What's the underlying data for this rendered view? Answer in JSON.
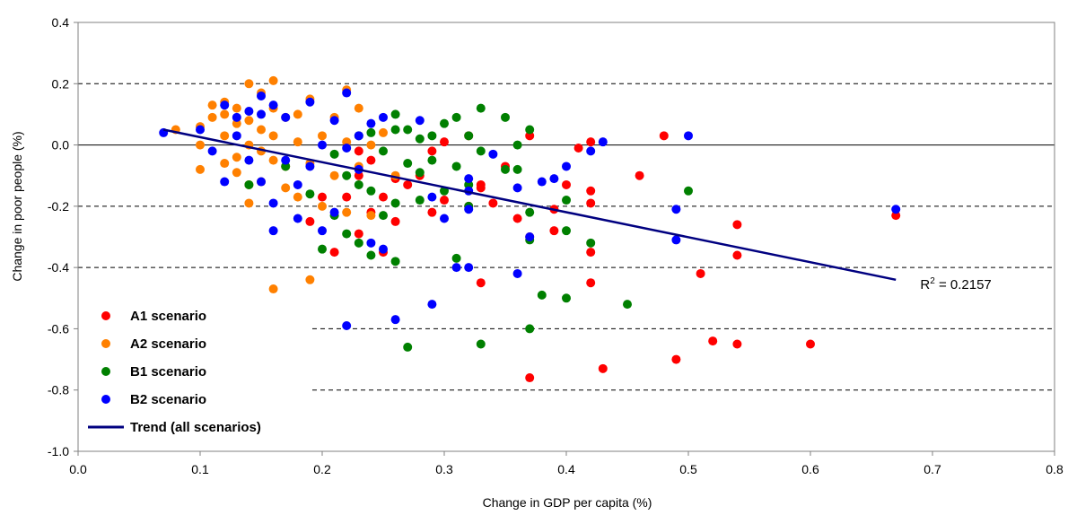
{
  "chart_data": {
    "type": "scatter",
    "title": "",
    "xlabel": "Change in GDP per capita (%)",
    "ylabel": "Change in poor people (%)",
    "xlim": [
      0.0,
      0.8
    ],
    "ylim": [
      -1.0,
      0.4
    ],
    "x_ticks": [
      "0.0",
      "0.1",
      "0.2",
      "0.3",
      "0.4",
      "0.5",
      "0.6",
      "0.7",
      "0.8"
    ],
    "y_ticks": [
      "0.4",
      "0.2",
      "0.0",
      "-0.2",
      "-0.4",
      "-0.6",
      "-0.8",
      "-1.0"
    ],
    "grid": "horizontal dashed",
    "legend_position": "bottom-left",
    "series": [
      {
        "name": "A1 scenario",
        "color": "#ff0000",
        "points": [
          [
            0.67,
            -0.23
          ],
          [
            0.6,
            -0.65
          ],
          [
            0.54,
            -0.26
          ],
          [
            0.54,
            -0.36
          ],
          [
            0.54,
            -0.65
          ],
          [
            0.52,
            -0.64
          ],
          [
            0.51,
            -0.42
          ],
          [
            0.49,
            -0.7
          ],
          [
            0.48,
            0.03
          ],
          [
            0.46,
            -0.1
          ],
          [
            0.42,
            -0.15
          ],
          [
            0.42,
            -0.19
          ],
          [
            0.42,
            -0.35
          ],
          [
            0.42,
            -0.45
          ],
          [
            0.42,
            0.01
          ],
          [
            0.41,
            -0.01
          ],
          [
            0.4,
            -0.13
          ],
          [
            0.39,
            -0.21
          ],
          [
            0.39,
            -0.28
          ],
          [
            0.43,
            -0.73
          ],
          [
            0.37,
            -0.76
          ],
          [
            0.37,
            -0.3
          ],
          [
            0.36,
            -0.24
          ],
          [
            0.35,
            -0.07
          ],
          [
            0.34,
            -0.19
          ],
          [
            0.33,
            -0.45
          ],
          [
            0.33,
            -0.13
          ],
          [
            0.32,
            -0.2
          ],
          [
            0.32,
            0.03
          ],
          [
            0.3,
            -0.18
          ],
          [
            0.29,
            -0.22
          ],
          [
            0.28,
            -0.1
          ],
          [
            0.27,
            -0.13
          ],
          [
            0.26,
            -0.25
          ],
          [
            0.25,
            -0.17
          ],
          [
            0.25,
            -0.35
          ],
          [
            0.24,
            -0.22
          ],
          [
            0.24,
            -0.05
          ],
          [
            0.23,
            -0.1
          ],
          [
            0.23,
            -0.29
          ],
          [
            0.22,
            -0.17
          ],
          [
            0.21,
            -0.35
          ],
          [
            0.2,
            -0.17
          ],
          [
            0.19,
            -0.25
          ],
          [
            0.37,
            0.03
          ],
          [
            0.3,
            0.01
          ],
          [
            0.26,
            -0.11
          ],
          [
            0.23,
            -0.02
          ],
          [
            0.33,
            -0.14
          ],
          [
            0.29,
            -0.02
          ]
        ]
      },
      {
        "name": "A2 scenario",
        "color": "#ff8000",
        "points": [
          [
            0.08,
            0.05
          ],
          [
            0.1,
            0.06
          ],
          [
            0.1,
            0.0
          ],
          [
            0.1,
            -0.08
          ],
          [
            0.11,
            0.13
          ],
          [
            0.11,
            0.09
          ],
          [
            0.12,
            0.14
          ],
          [
            0.12,
            0.03
          ],
          [
            0.12,
            -0.06
          ],
          [
            0.13,
            0.07
          ],
          [
            0.13,
            0.12
          ],
          [
            0.13,
            -0.04
          ],
          [
            0.13,
            -0.09
          ],
          [
            0.14,
            0.08
          ],
          [
            0.14,
            0.2
          ],
          [
            0.14,
            0.0
          ],
          [
            0.14,
            -0.19
          ],
          [
            0.15,
            0.17
          ],
          [
            0.15,
            0.05
          ],
          [
            0.15,
            -0.02
          ],
          [
            0.15,
            -0.12
          ],
          [
            0.16,
            0.12
          ],
          [
            0.16,
            0.03
          ],
          [
            0.16,
            -0.05
          ],
          [
            0.16,
            0.21
          ],
          [
            0.16,
            -0.47
          ],
          [
            0.17,
            0.09
          ],
          [
            0.17,
            -0.14
          ],
          [
            0.17,
            -0.07
          ],
          [
            0.18,
            0.01
          ],
          [
            0.18,
            -0.17
          ],
          [
            0.19,
            0.15
          ],
          [
            0.19,
            -0.06
          ],
          [
            0.19,
            -0.44
          ],
          [
            0.2,
            0.03
          ],
          [
            0.2,
            -0.2
          ],
          [
            0.21,
            0.09
          ],
          [
            0.21,
            -0.1
          ],
          [
            0.22,
            0.18
          ],
          [
            0.22,
            -0.22
          ],
          [
            0.23,
            0.12
          ],
          [
            0.23,
            -0.07
          ],
          [
            0.24,
            -0.23
          ],
          [
            0.24,
            0.0
          ],
          [
            0.25,
            0.04
          ],
          [
            0.26,
            -0.1
          ],
          [
            0.22,
            0.01
          ],
          [
            0.18,
            0.1
          ],
          [
            0.12,
            0.1
          ],
          [
            0.14,
            -0.13
          ]
        ]
      },
      {
        "name": "B1 scenario",
        "color": "#008000",
        "points": [
          [
            0.5,
            -0.15
          ],
          [
            0.45,
            -0.52
          ],
          [
            0.42,
            -0.32
          ],
          [
            0.4,
            -0.5
          ],
          [
            0.4,
            -0.28
          ],
          [
            0.4,
            -0.18
          ],
          [
            0.38,
            -0.49
          ],
          [
            0.37,
            -0.6
          ],
          [
            0.37,
            -0.31
          ],
          [
            0.37,
            -0.22
          ],
          [
            0.37,
            0.05
          ],
          [
            0.36,
            0.0
          ],
          [
            0.36,
            -0.08
          ],
          [
            0.35,
            -0.08
          ],
          [
            0.35,
            0.09
          ],
          [
            0.33,
            -0.65
          ],
          [
            0.33,
            0.12
          ],
          [
            0.33,
            -0.02
          ],
          [
            0.32,
            -0.13
          ],
          [
            0.32,
            0.03
          ],
          [
            0.31,
            -0.37
          ],
          [
            0.31,
            -0.07
          ],
          [
            0.31,
            0.09
          ],
          [
            0.3,
            -0.15
          ],
          [
            0.3,
            0.07
          ],
          [
            0.29,
            -0.05
          ],
          [
            0.29,
            0.03
          ],
          [
            0.28,
            -0.18
          ],
          [
            0.28,
            0.02
          ],
          [
            0.27,
            -0.66
          ],
          [
            0.27,
            -0.06
          ],
          [
            0.27,
            0.05
          ],
          [
            0.26,
            -0.38
          ],
          [
            0.26,
            -0.19
          ],
          [
            0.26,
            0.1
          ],
          [
            0.25,
            -0.23
          ],
          [
            0.25,
            -0.02
          ],
          [
            0.24,
            -0.36
          ],
          [
            0.24,
            -0.15
          ],
          [
            0.24,
            0.04
          ],
          [
            0.23,
            -0.32
          ],
          [
            0.23,
            -0.13
          ],
          [
            0.23,
            0.03
          ],
          [
            0.22,
            -0.29
          ],
          [
            0.22,
            -0.1
          ],
          [
            0.21,
            -0.23
          ],
          [
            0.21,
            -0.03
          ],
          [
            0.2,
            -0.34
          ],
          [
            0.19,
            -0.16
          ],
          [
            0.17,
            -0.07
          ],
          [
            0.14,
            -0.13
          ],
          [
            0.26,
            0.05
          ],
          [
            0.28,
            -0.09
          ],
          [
            0.32,
            -0.2
          ]
        ]
      },
      {
        "name": "B2 scenario",
        "color": "#0000ff",
        "points": [
          [
            0.67,
            -0.21
          ],
          [
            0.5,
            0.03
          ],
          [
            0.49,
            -0.21
          ],
          [
            0.49,
            -0.31
          ],
          [
            0.43,
            0.01
          ],
          [
            0.42,
            -0.02
          ],
          [
            0.4,
            -0.07
          ],
          [
            0.39,
            -0.11
          ],
          [
            0.38,
            -0.12
          ],
          [
            0.37,
            -0.3
          ],
          [
            0.36,
            -0.14
          ],
          [
            0.36,
            -0.42
          ],
          [
            0.34,
            -0.03
          ],
          [
            0.32,
            -0.11
          ],
          [
            0.32,
            -0.15
          ],
          [
            0.32,
            -0.21
          ],
          [
            0.32,
            -0.4
          ],
          [
            0.31,
            -0.4
          ],
          [
            0.3,
            -0.24
          ],
          [
            0.29,
            -0.17
          ],
          [
            0.29,
            -0.52
          ],
          [
            0.28,
            0.08
          ],
          [
            0.26,
            -0.57
          ],
          [
            0.25,
            -0.34
          ],
          [
            0.25,
            0.09
          ],
          [
            0.24,
            0.07
          ],
          [
            0.24,
            -0.32
          ],
          [
            0.23,
            -0.08
          ],
          [
            0.23,
            0.03
          ],
          [
            0.22,
            0.17
          ],
          [
            0.22,
            -0.01
          ],
          [
            0.22,
            -0.59
          ],
          [
            0.21,
            -0.22
          ],
          [
            0.21,
            0.08
          ],
          [
            0.2,
            -0.28
          ],
          [
            0.2,
            0.0
          ],
          [
            0.19,
            -0.07
          ],
          [
            0.19,
            0.14
          ],
          [
            0.18,
            -0.24
          ],
          [
            0.18,
            -0.13
          ],
          [
            0.17,
            0.09
          ],
          [
            0.17,
            -0.05
          ],
          [
            0.16,
            -0.19
          ],
          [
            0.16,
            -0.28
          ],
          [
            0.16,
            0.13
          ],
          [
            0.15,
            0.16
          ],
          [
            0.15,
            -0.12
          ],
          [
            0.14,
            0.11
          ],
          [
            0.14,
            -0.05
          ],
          [
            0.13,
            0.09
          ],
          [
            0.13,
            0.03
          ],
          [
            0.12,
            0.13
          ],
          [
            0.11,
            -0.02
          ],
          [
            0.1,
            0.05
          ],
          [
            0.07,
            0.04
          ],
          [
            0.15,
            0.1
          ],
          [
            0.12,
            -0.12
          ]
        ]
      }
    ],
    "trend": {
      "name": "Trend (all scenarios)",
      "color": "#000080",
      "from": [
        0.07,
        0.05
      ],
      "to": [
        0.67,
        -0.44
      ]
    },
    "annotation": {
      "label": "R",
      "superscript": "2",
      "value_text": " = 0.2157",
      "at": [
        0.69,
        -0.47
      ]
    }
  }
}
